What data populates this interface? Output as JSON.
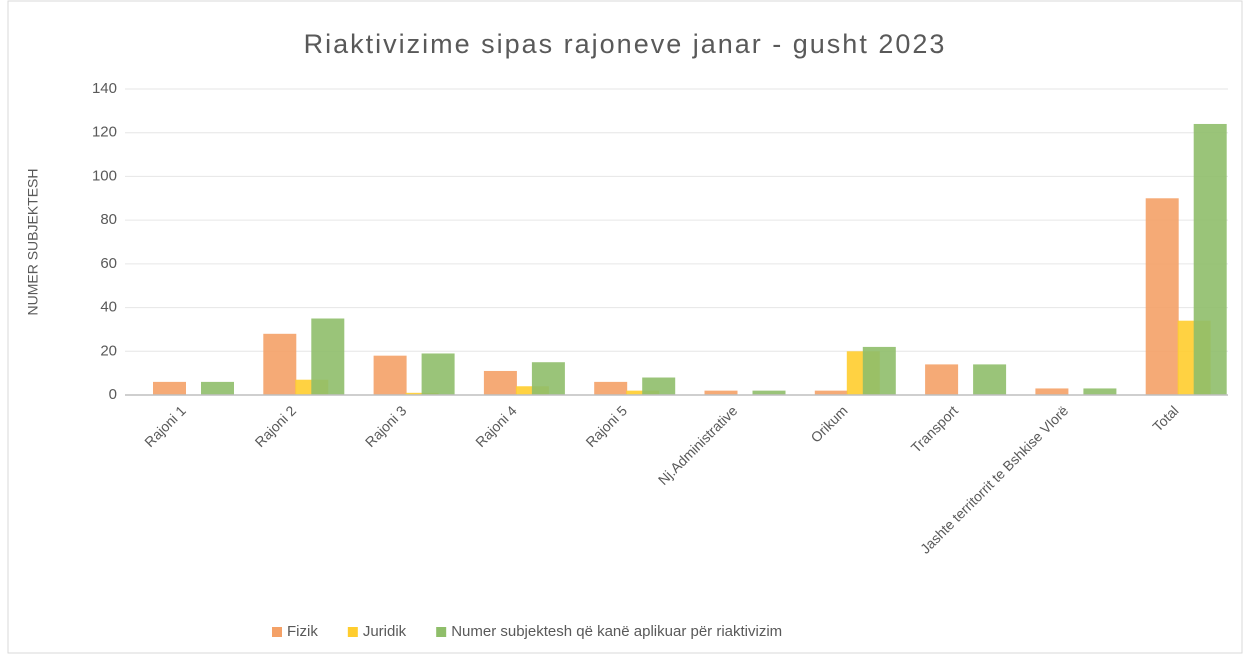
{
  "chart_data": {
    "type": "bar",
    "title": "Riaktivizime sipas rajoneve janar - gusht 2023",
    "y_label": "NUMER SUBJEKTESH",
    "categories": [
      "Rajoni 1",
      "Rajoni 2",
      "Rajoni 3",
      "Rajoni 4",
      "Rajoni 5",
      "Nj.Administrative",
      "Orikum",
      "Transport",
      "Jashte territorrit  te Bshkise Vlorë",
      "Total"
    ],
    "series": [
      {
        "name": "Fizik",
        "color": "#f4a167",
        "values": [
          6,
          28,
          18,
          11,
          6,
          2,
          2,
          14,
          3,
          90
        ]
      },
      {
        "name": "Juridik",
        "color": "#ffcd2e",
        "values": [
          0,
          7,
          1,
          4,
          2,
          0,
          20,
          0,
          0,
          34
        ]
      },
      {
        "name": "Numer subjektesh që kanë aplikuar për riaktivizim",
        "color": "#8fbe6a",
        "values": [
          6,
          35,
          19,
          15,
          8,
          2,
          22,
          14,
          3,
          124
        ]
      }
    ],
    "ylim": [
      0,
      140
    ],
    "yticks": [
      0,
      20,
      40,
      60,
      80,
      100,
      120,
      140
    ],
    "grid": true,
    "legend": "bottom"
  }
}
